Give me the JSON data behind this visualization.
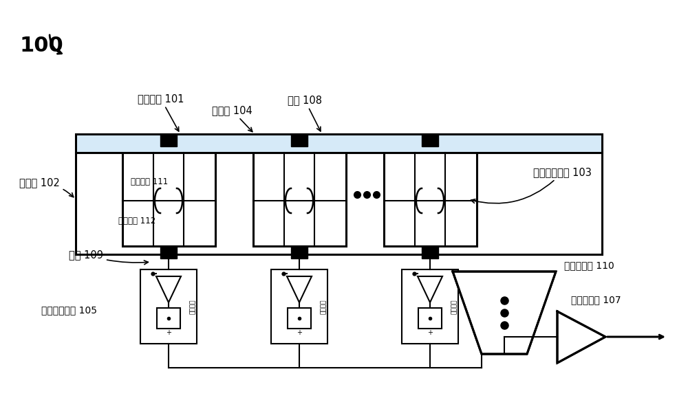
{
  "bg_color": "#ffffff",
  "black": "#000000",
  "light_blue": "#d6eaf8",
  "label_100": "100",
  "label_common_electrode": "公共电极 101",
  "label_nanopore": "纳米孔 104",
  "label_electrode_108": "电极 108",
  "label_test_cavity": "测试腔 102",
  "label_chamber1": "第一隔室 111",
  "label_chamber2": "第二隔室 112",
  "label_phospholipid": "磷脂双分子膜 103",
  "label_electrode_109": "电极 109",
  "label_measure_unit": "测量电路单元 105",
  "label_mux": "多路选泽器 110",
  "label_adc": "模数转换器 107",
  "label_circuit_unit": "电路单元"
}
